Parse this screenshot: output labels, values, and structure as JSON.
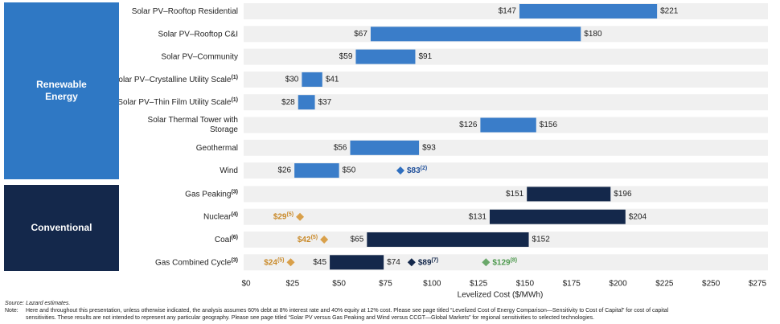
{
  "chart_data": {
    "type": "floating_bar",
    "x_label": "Levelized Cost ($/MWh)",
    "xlim": [
      0,
      275
    ],
    "xticks": [
      {
        "value": 0,
        "label": "$0"
      },
      {
        "value": 25,
        "label": "$25"
      },
      {
        "value": 50,
        "label": "$50"
      },
      {
        "value": 75,
        "label": "$75"
      },
      {
        "value": 100,
        "label": "$100"
      },
      {
        "value": 125,
        "label": "$125"
      },
      {
        "value": 150,
        "label": "$150"
      },
      {
        "value": 175,
        "label": "$175"
      },
      {
        "value": 200,
        "label": "$200"
      },
      {
        "value": 225,
        "label": "$225"
      },
      {
        "value": 250,
        "label": "$250"
      },
      {
        "value": 275,
        "label": "$275"
      }
    ],
    "groups": [
      {
        "name": "Renewable Energy",
        "color": "#2f78c4",
        "bar_color": "#3a7dc9",
        "categories": [
          "Solar PV–Rooftop Residential",
          "Solar PV–Rooftop C&I",
          "Solar PV–Community",
          "Solar PV–Crystalline Utility Scale",
          "Solar PV–Thin Film Utility Scale",
          [
            "Solar Thermal Tower with",
            "Storage"
          ],
          "Geothermal",
          "Wind"
        ],
        "notes": [
          null,
          null,
          null,
          "(1)",
          "(1)",
          null,
          null,
          null
        ],
        "low": [
          147,
          67,
          59,
          30,
          28,
          126,
          56,
          26
        ],
        "high": [
          221,
          180,
          91,
          41,
          37,
          156,
          93,
          50
        ],
        "low_labels": [
          "$147",
          "$67",
          "$59",
          "$30",
          "$28",
          "$126",
          "$56",
          "$26"
        ],
        "high_labels": [
          "$221",
          "$180",
          "$91",
          "$41",
          "$37",
          "$156",
          "$93",
          "$50"
        ],
        "markers": [
          {
            "color": "#2f6fbf",
            "label_color": "#1f4f9a",
            "label_side": "right",
            "values": [
              null,
              null,
              null,
              null,
              null,
              null,
              null,
              83
            ],
            "value_labels": [
              null,
              null,
              null,
              null,
              null,
              null,
              null,
              "$83"
            ],
            "notes": [
              null,
              null,
              null,
              null,
              null,
              null,
              null,
              "(2)"
            ]
          }
        ]
      },
      {
        "name": "Conventional",
        "color": "#14284b",
        "bar_color": "#14284b",
        "categories": [
          "Gas Peaking",
          "Nuclear",
          "Coal",
          "Gas Combined Cycle"
        ],
        "notes": [
          "(3)",
          "(4)",
          "(6)",
          "(3)"
        ],
        "low": [
          151,
          131,
          65,
          45
        ],
        "high": [
          196,
          204,
          152,
          74
        ],
        "low_labels": [
          "$151",
          "$131",
          "$65",
          "$45"
        ],
        "high_labels": [
          "$196",
          "$204",
          "$152",
          "$74"
        ],
        "markers": [
          {
            "color": "#d9a04a",
            "label_color": "#c98a2a",
            "label_side": "left",
            "values": [
              null,
              29,
              42,
              24
            ],
            "value_labels": [
              null,
              "$29",
              "$42",
              "$24"
            ],
            "notes": [
              null,
              "(5)",
              "(5)",
              "(5)"
            ]
          },
          {
            "color": "#14284b",
            "label_color": "#14284b",
            "label_side": "right",
            "values": [
              null,
              null,
              null,
              89
            ],
            "value_labels": [
              null,
              null,
              null,
              "$89"
            ],
            "notes": [
              null,
              null,
              null,
              "(7)"
            ]
          },
          {
            "color": "#6aa86a",
            "label_color": "#4f9a4f",
            "label_side": "right",
            "values": [
              null,
              null,
              null,
              129
            ],
            "value_labels": [
              null,
              null,
              null,
              "$129"
            ],
            "notes": [
              null,
              null,
              null,
              "(8)"
            ]
          }
        ]
      }
    ]
  },
  "footer": {
    "source": "Source: Lazard estimates.",
    "note_label": "Note:",
    "note_lines": [
      "Here and throughout this presentation, unless otherwise indicated, the analysis assumes 60% debt at 8% interest rate and 40% equity at 12% cost. Please see page titled “Levelized Cost of Energy Comparison—Sensitivity to Cost of Capital” for cost of capital",
      "sensitivities. These results are not intended to represent any particular geography. Please see page titled “Solar PV versus Gas Peaking and Wind versus CCGT—Global Markets” for regional sensitivities to selected technologies."
    ]
  }
}
